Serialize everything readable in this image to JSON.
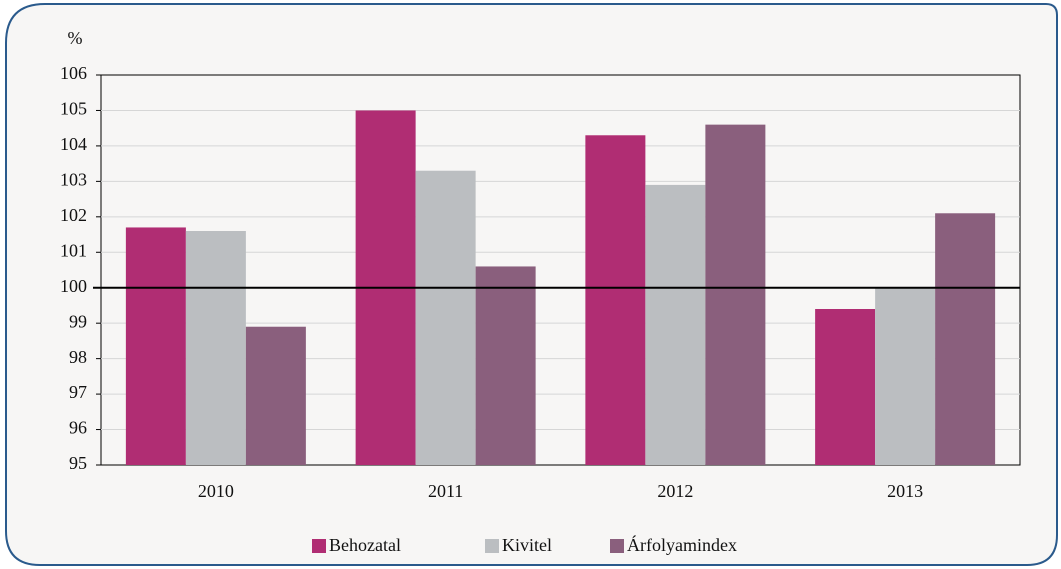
{
  "chart_data": {
    "type": "bar",
    "y_label": "%",
    "categories": [
      "2010",
      "2011",
      "2012",
      "2013"
    ],
    "series": [
      {
        "name": "Behozatal",
        "color": "#b02d73",
        "values": [
          101.7,
          105.0,
          104.3,
          99.4
        ]
      },
      {
        "name": "Kivitel",
        "color": "#bbbec1",
        "values": [
          101.6,
          103.3,
          102.9,
          100.0
        ]
      },
      {
        "name": "Árfolyamindex",
        "color": "#8a5f7d",
        "values": [
          98.9,
          100.6,
          104.6,
          102.1
        ]
      }
    ],
    "ylim": [
      95,
      106
    ],
    "yticks": [
      95,
      96,
      97,
      98,
      99,
      100,
      101,
      102,
      103,
      104,
      105,
      106
    ],
    "reference_line": 100,
    "grid": true,
    "legend": "bottom"
  }
}
